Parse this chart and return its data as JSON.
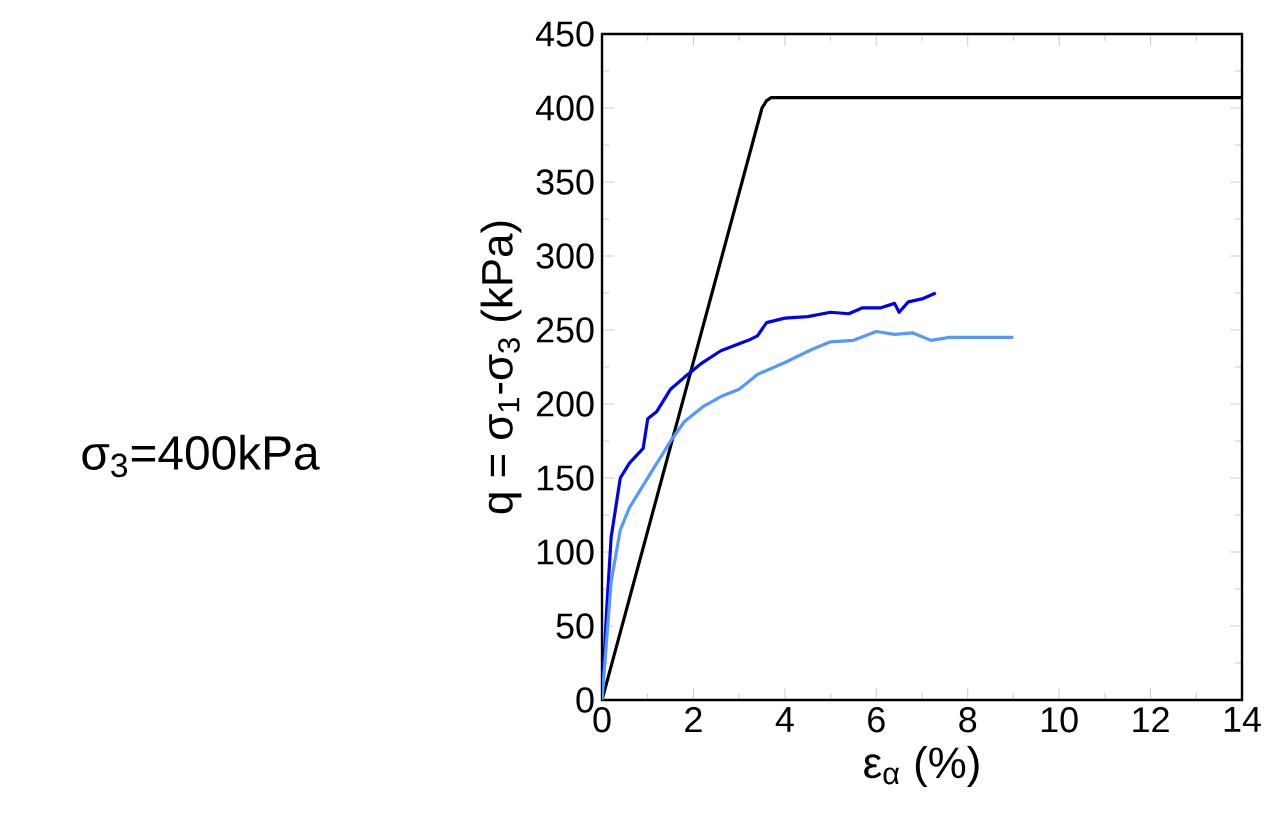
{
  "chart_data": {
    "type": "line",
    "xlabel": "ε$_{α}$ (%)",
    "ylabel": "q = σ$_{1}$-σ$_{3}$ (kPa)",
    "annotations": [
      "σ$_{3}$=400kPa"
    ],
    "xlim": [
      0,
      14
    ],
    "ylim": [
      0,
      450
    ],
    "xticks": [
      0,
      2,
      4,
      6,
      8,
      10,
      12,
      14
    ],
    "yticks": [
      0,
      50,
      100,
      150,
      200,
      250,
      300,
      350,
      400,
      450
    ],
    "series": [
      {
        "color": "#000000",
        "x": [
          0,
          3.5,
          3.6,
          3.7,
          14
        ],
        "values": [
          0,
          400,
          405,
          407,
          407
        ]
      },
      {
        "color": "#0000ee",
        "x": [
          0,
          0.1,
          0.2,
          0.4,
          0.6,
          0.9,
          1.0,
          1.2,
          1.5,
          1.8,
          2.2,
          2.6,
          3.2,
          3.4,
          3.6,
          4.0,
          4.5,
          5.0,
          5.4,
          5.7,
          6.1,
          6.4,
          6.5,
          6.7,
          7.0,
          7.3
        ],
        "values": [
          0,
          60,
          110,
          150,
          160,
          170,
          190,
          195,
          210,
          218,
          228,
          236,
          243,
          246,
          255,
          258,
          259,
          262,
          261,
          265,
          265,
          268,
          262,
          269,
          271,
          275
        ]
      },
      {
        "color": "#5599ff",
        "x": [
          0,
          0.1,
          0.2,
          0.4,
          0.6,
          0.9,
          1.2,
          1.5,
          1.8,
          2.2,
          2.6,
          3.0,
          3.4,
          4.0,
          4.6,
          5.0,
          5.5,
          6.0,
          6.4,
          6.8,
          7.2,
          7.6,
          8.2,
          9.0
        ],
        "values": [
          0,
          40,
          80,
          115,
          130,
          145,
          160,
          175,
          188,
          198,
          205,
          210,
          220,
          228,
          237,
          242,
          243,
          249,
          247,
          248,
          243,
          245,
          245,
          245
        ]
      }
    ]
  }
}
